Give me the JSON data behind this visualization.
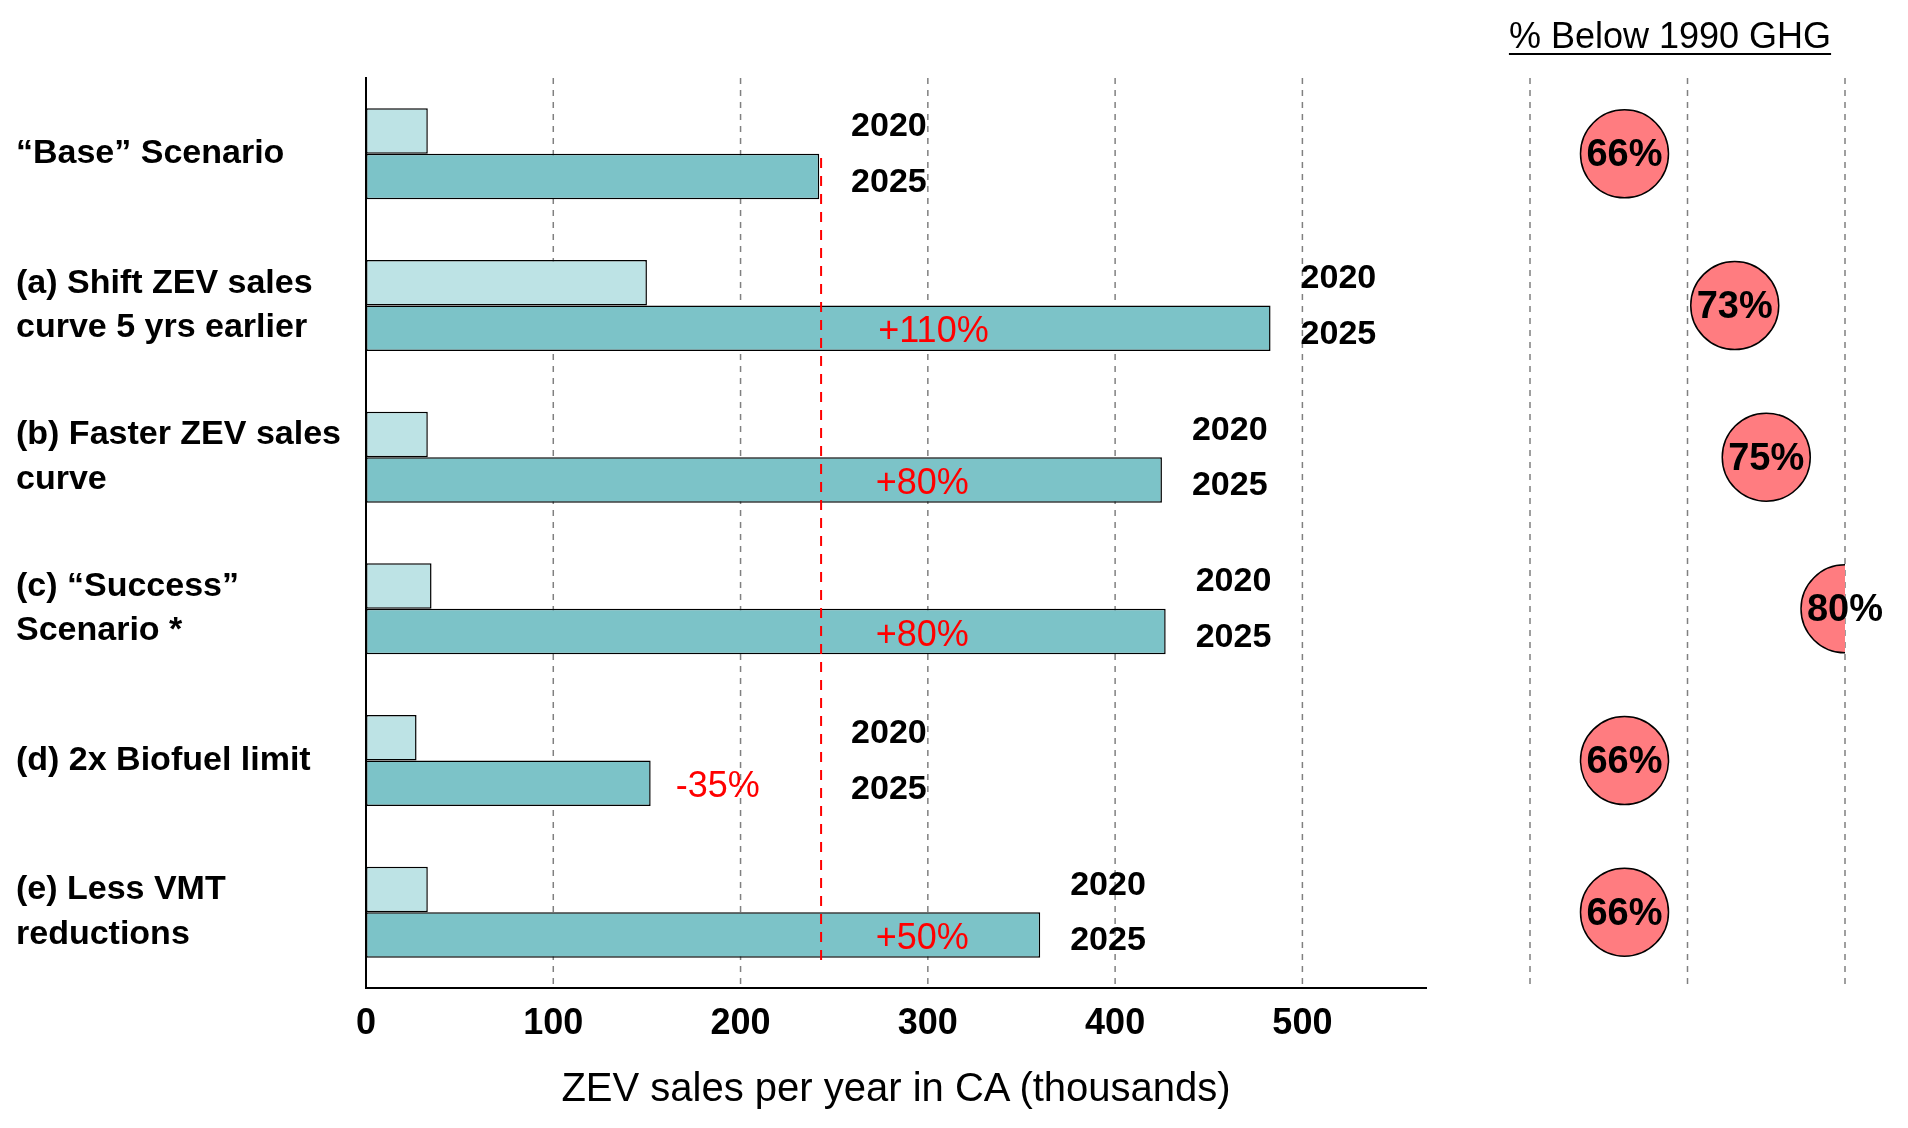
{
  "chart_data": [
    {
      "type": "bar",
      "orientation": "horizontal",
      "xlabel": "ZEV sales per year in CA (thousands)",
      "categories": [
        "“Base” Scenario",
        "(a) Shift ZEV sales curve 5 yrs earlier",
        "(b) Faster ZEV sales curve",
        "(c) “Success” Scenario *",
        "(d) 2x Biofuel limit",
        "(e) Less VMT reductions"
      ],
      "series": [
        {
          "name": "2020",
          "color": "#bde3e5",
          "values": [
            33,
            150,
            33,
            35,
            27,
            33
          ]
        },
        {
          "name": "2025",
          "color": "#7cc3c8",
          "values": [
            242,
            483,
            425,
            427,
            152,
            360
          ]
        }
      ],
      "xlim": [
        0,
        566
      ],
      "xticks": [
        0,
        100,
        200,
        300,
        400,
        500
      ],
      "grid": "x",
      "ref_lines": [
        {
          "axis": "x",
          "value": 243,
          "color": "#ff0000",
          "line_style": "dashed"
        }
      ],
      "annotations": [
        {
          "text": "+110%",
          "x": 303,
          "y": "(a) Shift ZEV sales curve 5 yrs earlier"
        },
        {
          "text": "+80%",
          "x": 297,
          "y": "(b) Faster ZEV sales curve"
        },
        {
          "text": "+80%",
          "x": 297,
          "y": "(c) “Success” Scenario *"
        },
        {
          "text": "-35%",
          "x": 152,
          "y": "(d) 2x Biofuel limit"
        },
        {
          "text": "+50%",
          "x": 297,
          "y": "(e) Less VMT reductions"
        }
      ]
    },
    {
      "type": "scatter",
      "orientation": "horizontal",
      "title": "% Below 1990 GHG",
      "values": [
        66,
        73,
        75,
        80,
        66,
        66
      ],
      "value_labels": [
        "66%",
        "73%",
        "75%",
        "80%",
        "66%",
        "66%"
      ],
      "color": "#ff7c80",
      "marker": "circle",
      "xlim": [
        60,
        80
      ],
      "xticks": [
        {
          "value": 60,
          "label": null
        },
        {
          "value": 70,
          "label": null
        },
        {
          "value": 80,
          "label": null
        }
      ],
      "grid": "x",
      "tick_labels": false
    }
  ]
}
